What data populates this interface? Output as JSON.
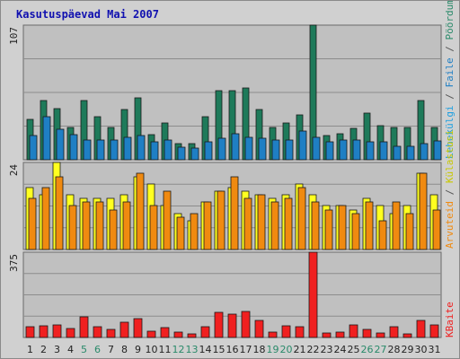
{
  "colors": {
    "background": "#d0d0d0",
    "plot_bg": "#c0c0c0",
    "grid": "#8c8c8c",
    "title": "#1010b0",
    "weekday": "#222222",
    "weekend": "#2a8a6a",
    "visits": "#1e7a5a",
    "pages": "#21a0e0",
    "files": "#1f7fc4",
    "hits": "#2a8a6a",
    "sites": "#ffff20",
    "visitors": "#f08a10",
    "kbytes": "#f02020",
    "legend_sep": "#555555"
  },
  "chart_data": {
    "type": "bar",
    "title": "Kasutuspäevad Mai 2007",
    "categories": [
      "1",
      "2",
      "3",
      "4",
      "5",
      "6",
      "7",
      "8",
      "9",
      "10",
      "11",
      "12",
      "13",
      "14",
      "15",
      "16",
      "17",
      "18",
      "19",
      "20",
      "21",
      "22",
      "23",
      "24",
      "25",
      "26",
      "27",
      "28",
      "29",
      "30",
      "31"
    ],
    "weekend_days": [
      5,
      6,
      12,
      13,
      19,
      20,
      26,
      27
    ],
    "legend_sep": "/",
    "panels": [
      {
        "name": "top",
        "ymax": 107,
        "ymax_label": "107",
        "series": [
          {
            "name": "Pöördumisi",
            "color": "#1e7a5a",
            "values": [
              32,
              47,
              41,
              26,
              47,
              34,
              26,
              40,
              49,
              20,
              29,
              13,
              13,
              34,
              55,
              55,
              57,
              40,
              26,
              29,
              36,
              107,
              19,
              21,
              25,
              37,
              27,
              26,
              26,
              47,
              26
            ]
          },
          {
            "name": "Faile",
            "color": "#1f7fc4",
            "values": [
              19,
              34,
              24,
              20,
              16,
              16,
              16,
              18,
              19,
              14,
              16,
              10,
              9,
              14,
              17,
              21,
              18,
              17,
              16,
              16,
              23,
              18,
              14,
              16,
              16,
              14,
              14,
              11,
              11,
              13,
              15
            ]
          },
          {
            "name": "Lehekülgi",
            "color": "#21a0e0",
            "values": [
              18,
              32,
              22,
              16,
              14,
              14,
              14,
              17,
              18,
              13,
              15,
              9,
              8,
              13,
              16,
              20,
              17,
              16,
              15,
              15,
              22,
              17,
              13,
              15,
              15,
              13,
              13,
              10,
              10,
              12,
              14
            ]
          }
        ]
      },
      {
        "name": "middle",
        "ymax": 24,
        "ymax_label": "24",
        "series": [
          {
            "name": "Külastusi",
            "color": "#ffff20",
            "values": [
              17,
              15,
              24,
              15,
              14,
              14,
              14,
              15,
              20,
              18,
              12,
              10,
              8,
              13,
              16,
              17,
              16,
              15,
              14,
              15,
              18,
              15,
              12,
              12,
              11,
              14,
              12,
              10,
              12,
              21,
              15
            ]
          },
          {
            "name": "Arvuteid",
            "color": "#f08a10",
            "values": [
              14,
              17,
              20,
              12,
              13,
              13,
              11,
              13,
              21,
              12,
              16,
              9,
              10,
              13,
              16,
              20,
              14,
              15,
              13,
              14,
              17,
              13,
              11,
              12,
              10,
              13,
              8,
              13,
              10,
              21,
              11
            ]
          }
        ]
      },
      {
        "name": "bottom",
        "ymax": 375,
        "ymax_label": "375",
        "series": [
          {
            "name": "KBaite",
            "color": "#f02020",
            "values": [
              46,
              53,
              55,
              38,
              90,
              48,
              35,
              69,
              84,
              26,
              45,
              25,
              14,
              48,
              110,
              103,
              116,
              74,
              24,
              52,
              48,
              375,
              20,
              22,
              57,
              35,
              18,
              47,
              14,
              74,
              56
            ]
          }
        ]
      }
    ]
  }
}
